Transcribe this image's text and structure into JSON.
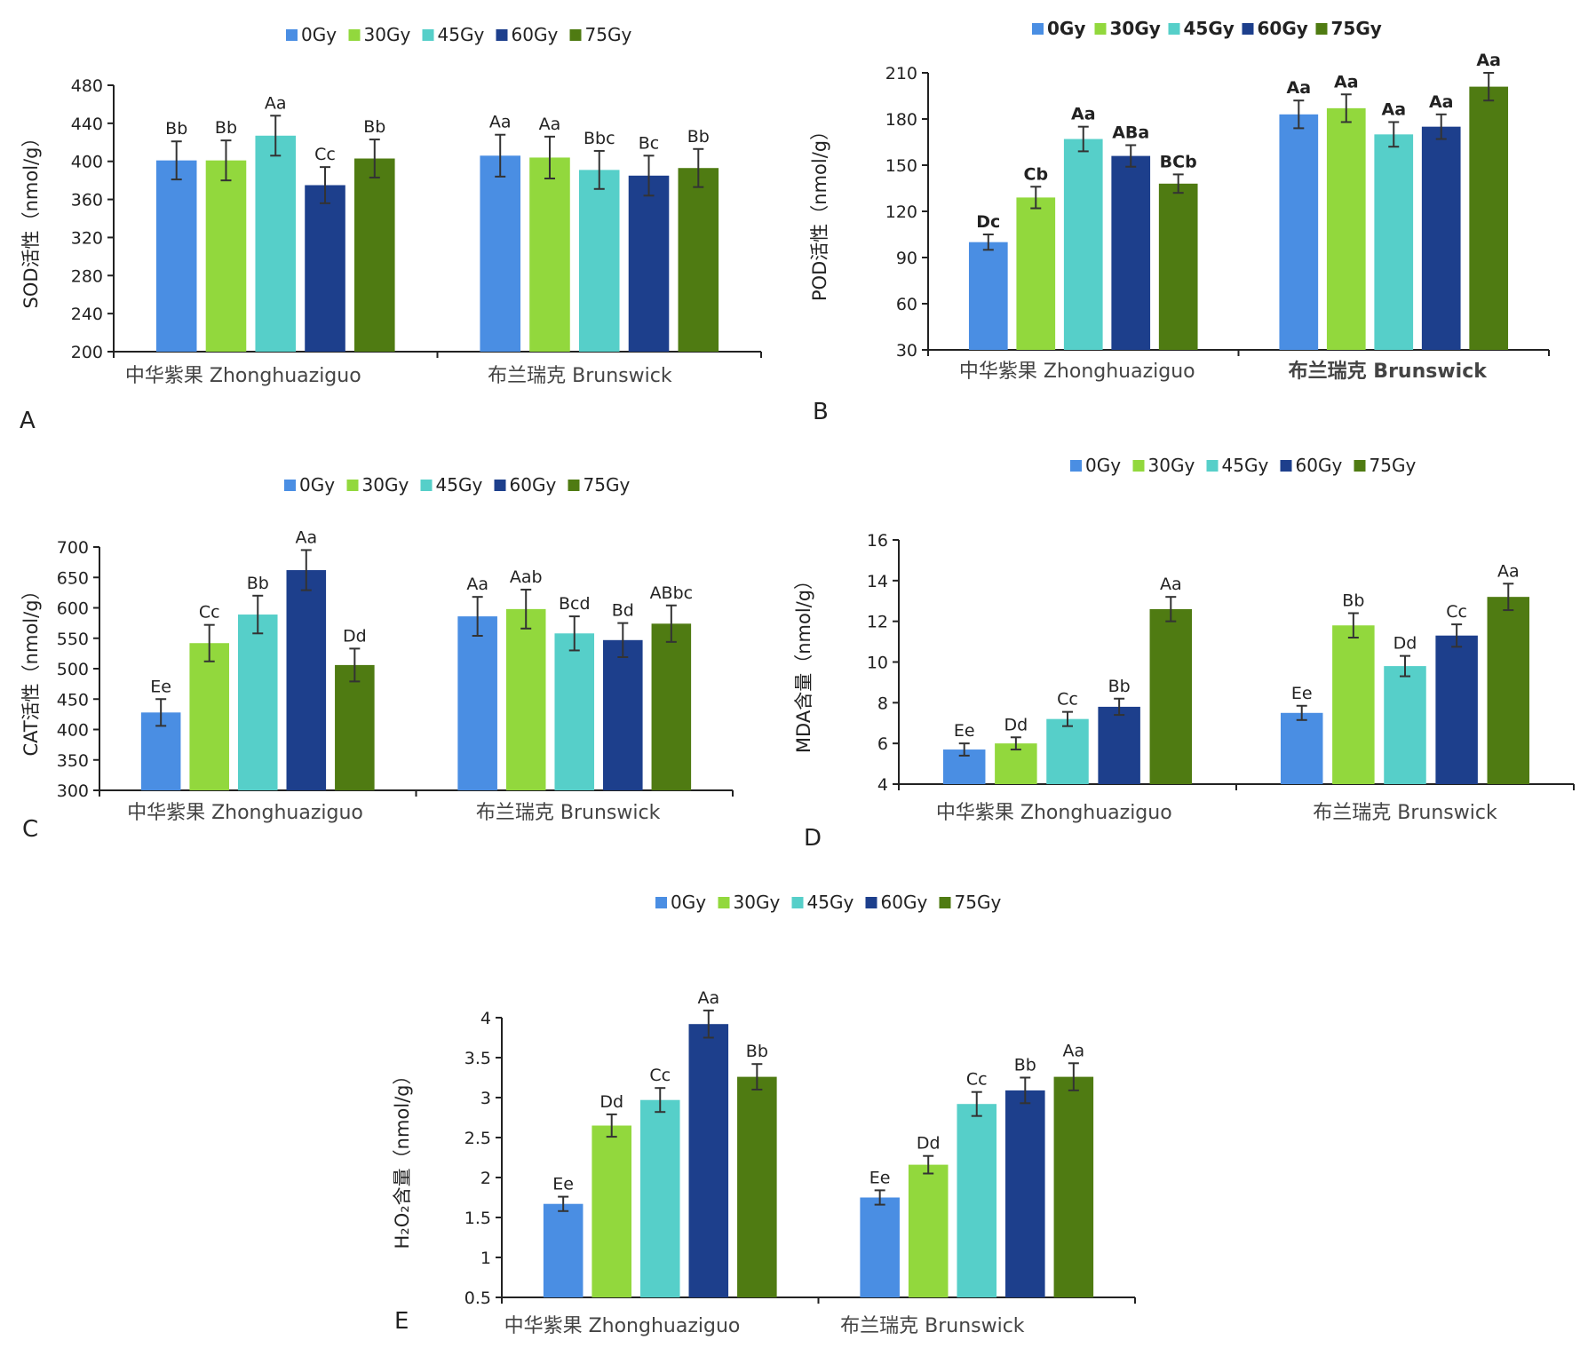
{
  "chart_data": [
    {
      "type": "bar",
      "panel": "A",
      "ylabel": "SOD活性（nmol/g）",
      "ylim": [
        200,
        480
      ],
      "yticks": [
        "200",
        "240",
        "280",
        "320",
        "360",
        "400",
        "440",
        "480"
      ],
      "categories": [
        "中华紫果 Zhonghuaziguo",
        "布兰瑞克 Brunswick"
      ],
      "legend": [
        "0Gy",
        "30Gy",
        "45Gy",
        "60Gy",
        "75Gy"
      ],
      "series": [
        {
          "name": "0Gy",
          "values": [
            401,
            406
          ],
          "errors": [
            20,
            22
          ],
          "labels": [
            "Bb",
            "Aa"
          ]
        },
        {
          "name": "30Gy",
          "values": [
            401,
            404
          ],
          "errors": [
            21,
            22
          ],
          "labels": [
            "Bb",
            "Aa"
          ]
        },
        {
          "name": "45Gy",
          "values": [
            427,
            391
          ],
          "errors": [
            21,
            20
          ],
          "labels": [
            "Aa",
            "Bbc"
          ]
        },
        {
          "name": "60Gy",
          "values": [
            375,
            385
          ],
          "errors": [
            19,
            21
          ],
          "labels": [
            "Cc",
            "Bc"
          ]
        },
        {
          "name": "75Gy",
          "values": [
            403,
            393
          ],
          "errors": [
            20,
            20
          ],
          "labels": [
            "Bb",
            "Bb"
          ]
        }
      ],
      "bold_labels": false
    },
    {
      "type": "bar",
      "panel": "B",
      "ylabel": "POD活性（nmol/g）",
      "ylim": [
        30,
        210
      ],
      "yticks": [
        "30",
        "60",
        "90",
        "120",
        "150",
        "180",
        "210"
      ],
      "categories": [
        "中华紫果 Zhonghuaziguo",
        "布兰瑞克 Brunswick"
      ],
      "legend": [
        "0Gy",
        "30Gy",
        "45Gy",
        "60Gy",
        "75Gy"
      ],
      "series": [
        {
          "name": "0Gy",
          "values": [
            100,
            183
          ],
          "errors": [
            5,
            9
          ],
          "labels": [
            "Dc",
            "Aa"
          ]
        },
        {
          "name": "30Gy",
          "values": [
            129,
            187
          ],
          "errors": [
            7,
            9
          ],
          "labels": [
            "Cb",
            "Aa"
          ]
        },
        {
          "name": "45Gy",
          "values": [
            167,
            170
          ],
          "errors": [
            8,
            8
          ],
          "labels": [
            "Aa",
            "Aa"
          ]
        },
        {
          "name": "60Gy",
          "values": [
            156,
            175
          ],
          "errors": [
            7,
            8
          ],
          "labels": [
            "ABa",
            "Aa"
          ]
        },
        {
          "name": "75Gy",
          "values": [
            138,
            201
          ],
          "errors": [
            6,
            9
          ],
          "labels": [
            "BCb",
            "Aa"
          ]
        }
      ],
      "bold_labels": true
    },
    {
      "type": "bar",
      "panel": "C",
      "ylabel": "CAT活性（nmol/g）",
      "ylim": [
        300,
        700
      ],
      "yticks": [
        "300",
        "350",
        "400",
        "450",
        "500",
        "550",
        "600",
        "650",
        "700"
      ],
      "categories": [
        "中华紫果 Zhonghuaziguo",
        "布兰瑞克 Brunswick"
      ],
      "legend": [
        "0Gy",
        "30Gy",
        "45Gy",
        "60Gy",
        "75Gy"
      ],
      "series": [
        {
          "name": "0Gy",
          "values": [
            428,
            586
          ],
          "errors": [
            22,
            32
          ],
          "labels": [
            "Ee",
            "Aa"
          ]
        },
        {
          "name": "30Gy",
          "values": [
            542,
            598
          ],
          "errors": [
            30,
            32
          ],
          "labels": [
            "Cc",
            "Aab"
          ]
        },
        {
          "name": "45Gy",
          "values": [
            589,
            558
          ],
          "errors": [
            31,
            28
          ],
          "labels": [
            "Bb",
            "Bcd"
          ]
        },
        {
          "name": "60Gy",
          "values": [
            662,
            547
          ],
          "errors": [
            33,
            28
          ],
          "labels": [
            "Aa",
            "Bd"
          ]
        },
        {
          "name": "75Gy",
          "values": [
            506,
            574
          ],
          "errors": [
            27,
            30
          ],
          "labels": [
            "Dd",
            "ABbc"
          ]
        }
      ],
      "bold_labels": false
    },
    {
      "type": "bar",
      "panel": "D",
      "ylabel": "MDA含量（nmol/g）",
      "ylim": [
        4,
        16
      ],
      "yticks": [
        "4",
        "6",
        "8",
        "10",
        "12",
        "14",
        "16"
      ],
      "categories": [
        "中华紫果 Zhonghuaziguo",
        "布兰瑞克 Brunswick"
      ],
      "legend": [
        "0Gy",
        "30Gy",
        "45Gy",
        "60Gy",
        "75Gy"
      ],
      "series": [
        {
          "name": "0Gy",
          "values": [
            5.7,
            7.5
          ],
          "errors": [
            0.3,
            0.35
          ],
          "labels": [
            "Ee",
            "Ee"
          ]
        },
        {
          "name": "30Gy",
          "values": [
            6.0,
            11.8
          ],
          "errors": [
            0.3,
            0.6
          ],
          "labels": [
            "Dd",
            "Bb"
          ]
        },
        {
          "name": "45Gy",
          "values": [
            7.2,
            9.8
          ],
          "errors": [
            0.35,
            0.5
          ],
          "labels": [
            "Cc",
            "Dd"
          ]
        },
        {
          "name": "60Gy",
          "values": [
            7.8,
            11.3
          ],
          "errors": [
            0.4,
            0.55
          ],
          "labels": [
            "Bb",
            "Cc"
          ]
        },
        {
          "name": "75Gy",
          "values": [
            12.6,
            13.2
          ],
          "errors": [
            0.6,
            0.65
          ],
          "labels": [
            "Aa",
            "Aa"
          ]
        }
      ],
      "bold_labels": false
    },
    {
      "type": "bar",
      "panel": "E",
      "ylabel": "H₂O₂含量（nmol/g）",
      "ylim": [
        0.5,
        4
      ],
      "yticks": [
        "0.5",
        "1",
        "1.5",
        "2",
        "2.5",
        "3",
        "3.5",
        "4"
      ],
      "categories": [
        "中华紫果 Zhonghuaziguo",
        "布兰瑞克 Brunswick"
      ],
      "legend": [
        "0Gy",
        "30Gy",
        "45Gy",
        "60Gy",
        "75Gy"
      ],
      "series": [
        {
          "name": "0Gy",
          "values": [
            1.67,
            1.75
          ],
          "errors": [
            0.09,
            0.09
          ],
          "labels": [
            "Ee",
            "Ee"
          ]
        },
        {
          "name": "30Gy",
          "values": [
            2.65,
            2.16
          ],
          "errors": [
            0.14,
            0.11
          ],
          "labels": [
            "Dd",
            "Dd"
          ]
        },
        {
          "name": "45Gy",
          "values": [
            2.97,
            2.92
          ],
          "errors": [
            0.15,
            0.15
          ],
          "labels": [
            "Cc",
            "Cc"
          ]
        },
        {
          "name": "60Gy",
          "values": [
            3.92,
            3.09
          ],
          "errors": [
            0.17,
            0.16
          ],
          "labels": [
            "Aa",
            "Bb"
          ]
        },
        {
          "name": "75Gy",
          "values": [
            3.26,
            3.26
          ],
          "errors": [
            0.16,
            0.17
          ],
          "labels": [
            "Bb",
            "Aa"
          ]
        }
      ],
      "bold_labels": false
    }
  ],
  "colors": {
    "0Gy": "#4a8ee3",
    "30Gy": "#92d83d",
    "45Gy": "#56cfc9",
    "60Gy": "#1d3f8c",
    "75Gy": "#4f7b12",
    "axis": "#222222",
    "error": "#333333"
  }
}
